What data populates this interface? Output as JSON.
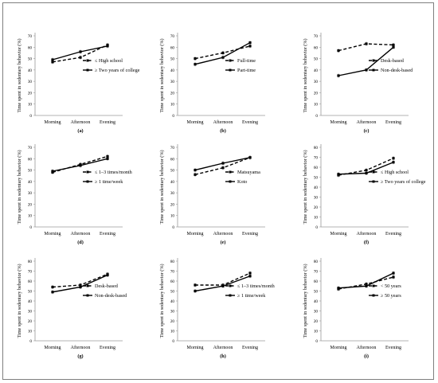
{
  "figure": {
    "ylabel": "Time spent in sedentary behavior (%)",
    "categories": [
      "Morning",
      "Afternoon",
      "Evening"
    ]
  },
  "chart_data": [
    {
      "type": "line",
      "panel_label": "(a)",
      "ylim": [
        0,
        70
      ],
      "yticks": [
        0,
        10,
        20,
        30,
        40,
        50,
        60,
        70
      ],
      "series": [
        {
          "name": "≤ High  school",
          "dash": true,
          "values": [
            47,
            51,
            62
          ]
        },
        {
          "name": "≥ Two years of college",
          "dash": false,
          "values": [
            49,
            56,
            61
          ]
        }
      ]
    },
    {
      "type": "line",
      "panel_label": "(b)",
      "ylim": [
        0,
        70
      ],
      "yticks": [
        0,
        10,
        20,
        30,
        40,
        50,
        60,
        70
      ],
      "series": [
        {
          "name": "Full-time",
          "dash": true,
          "values": [
            50,
            55,
            61
          ]
        },
        {
          "name": "Part-time",
          "dash": false,
          "values": [
            45,
            51,
            64
          ]
        }
      ]
    },
    {
      "type": "line",
      "panel_label": "(c)",
      "ylim": [
        0,
        70
      ],
      "yticks": [
        0,
        10,
        20,
        30,
        40,
        50,
        60,
        70
      ],
      "series": [
        {
          "name": "Desk-based",
          "dash": true,
          "values": [
            57,
            63,
            62
          ]
        },
        {
          "name": "Non-desk-based",
          "dash": false,
          "values": [
            35,
            40,
            60
          ]
        }
      ]
    },
    {
      "type": "line",
      "panel_label": "(d)",
      "ylim": [
        0,
        70
      ],
      "yticks": [
        0,
        10,
        20,
        30,
        40,
        50,
        60,
        70
      ],
      "series": [
        {
          "name": "≤ 1–3 times/month",
          "dash": true,
          "values": [
            48,
            55,
            62
          ]
        },
        {
          "name": "≥ 1 time/week",
          "dash": false,
          "values": [
            49,
            54,
            60
          ]
        }
      ]
    },
    {
      "type": "line",
      "panel_label": "(e)",
      "ylim": [
        0,
        70
      ],
      "yticks": [
        0,
        10,
        20,
        30,
        40,
        50,
        60,
        70
      ],
      "series": [
        {
          "name": "Matsuyama",
          "dash": true,
          "values": [
            46,
            52,
            61
          ]
        },
        {
          "name": "Koto",
          "dash": false,
          "values": [
            50,
            56,
            61
          ]
        }
      ]
    },
    {
      "type": "line",
      "panel_label": "(f)",
      "ylim": [
        0,
        80
      ],
      "yticks": [
        0,
        10,
        20,
        30,
        40,
        50,
        60,
        70,
        80
      ],
      "series": [
        {
          "name": "≤ High  school",
          "dash": true,
          "values": [
            52,
            57,
            69
          ]
        },
        {
          "name": "≥ Two years of college",
          "dash": false,
          "values": [
            53,
            54,
            65
          ]
        }
      ]
    },
    {
      "type": "line",
      "panel_label": "(g)",
      "ylim": [
        0,
        80
      ],
      "yticks": [
        0,
        10,
        20,
        30,
        40,
        50,
        60,
        70,
        80
      ],
      "series": [
        {
          "name": "Desk-based",
          "dash": true,
          "values": [
            54,
            56,
            67
          ]
        },
        {
          "name": "Non-desk-based",
          "dash": false,
          "values": [
            49,
            54,
            66
          ]
        }
      ]
    },
    {
      "type": "line",
      "panel_label": "(h)",
      "ylim": [
        0,
        80
      ],
      "yticks": [
        0,
        10,
        20,
        30,
        40,
        50,
        60,
        70,
        80
      ],
      "series": [
        {
          "name": "≤ 1–3 times/month",
          "dash": true,
          "values": [
            56,
            56,
            68
          ]
        },
        {
          "name": "≥ 1 time/week",
          "dash": false,
          "values": [
            50,
            55,
            65
          ]
        }
      ]
    },
    {
      "type": "line",
      "panel_label": "(i)",
      "ylim": [
        0,
        80
      ],
      "yticks": [
        0,
        10,
        20,
        30,
        40,
        50,
        60,
        70,
        80
      ],
      "series": [
        {
          "name": "< 50 years",
          "dash": true,
          "values": [
            52,
            57,
            64
          ]
        },
        {
          "name": "≥ 50 years",
          "dash": false,
          "values": [
            53,
            55,
            68
          ]
        }
      ]
    }
  ]
}
